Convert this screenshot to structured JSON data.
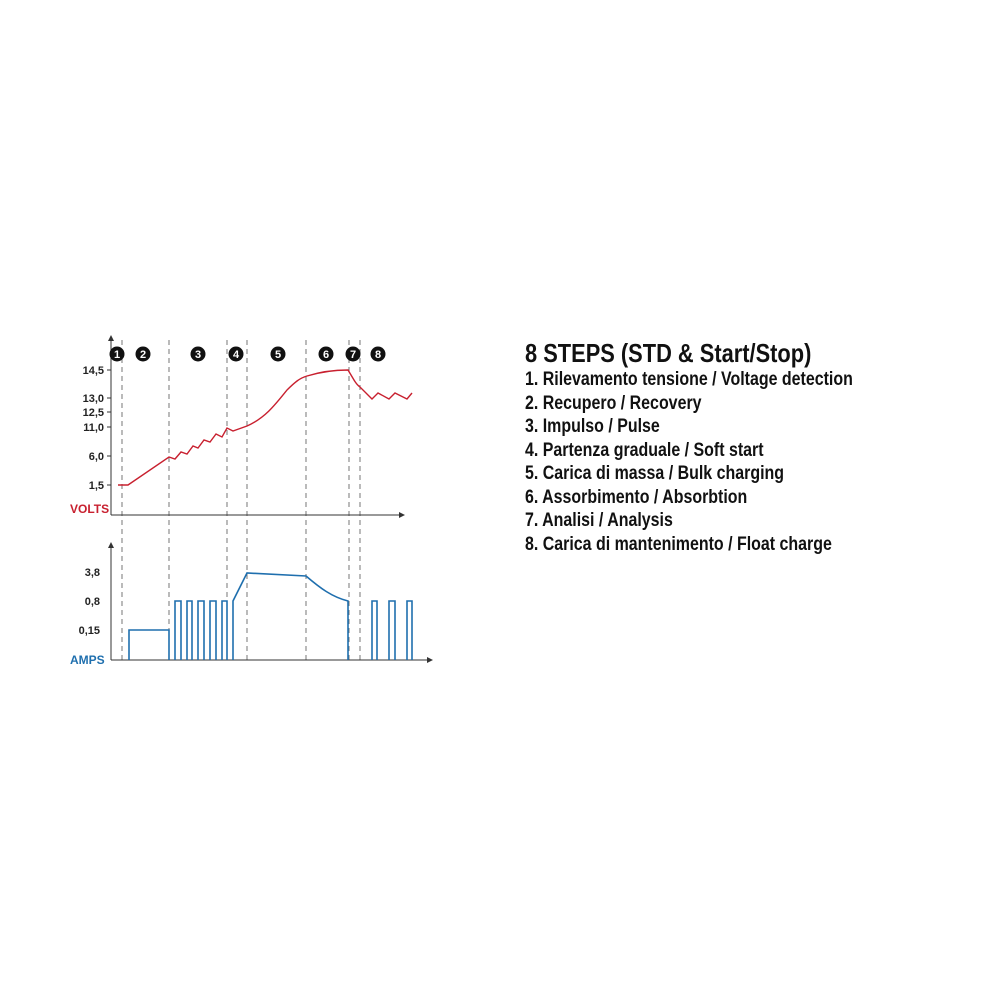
{
  "legend": {
    "title": "8 STEPS (STD & Start/Stop)",
    "items": [
      "1. Rilevamento tensione / Voltage detection",
      "2. Recupero / Recovery",
      "3. Impulso / Pulse",
      "4. Partenza graduale / Soft start",
      "5. Carica di massa / Bulk charging",
      "6. Assorbimento / Absorbtion",
      "7. Analisi / Analysis",
      "8. Carica di mantenimento / Float charge"
    ]
  },
  "chart_data": {
    "type": "line",
    "steps": [
      "1",
      "2",
      "3",
      "4",
      "5",
      "6",
      "7",
      "8"
    ],
    "volts": {
      "label": "VOLTS",
      "color": "#c8202f",
      "ticks": [
        "14,5",
        "13,0",
        "12,5",
        "11,0",
        "6,0",
        "1,5"
      ]
    },
    "amps": {
      "label": "AMPS",
      "color": "#1f6fae",
      "ticks": [
        "3,8",
        "0,8",
        "0,15"
      ]
    }
  }
}
